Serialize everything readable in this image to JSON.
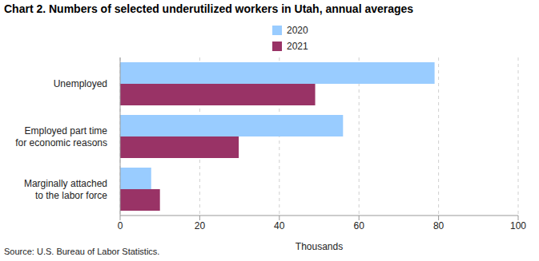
{
  "chart_data": {
    "type": "bar",
    "title": "Chart 2. Numbers of selected underutilized workers in Utah, annual averages",
    "orientation": "horizontal",
    "categories": [
      "Unemployed",
      "Employed part time\nfor economic reasons",
      "Marginally attached\nto the labor force"
    ],
    "series": [
      {
        "name": "2020",
        "color": "#99ccff",
        "values": [
          79,
          56,
          7.8
        ]
      },
      {
        "name": "2021",
        "color": "#993366",
        "values": [
          49,
          29.8,
          10
        ]
      }
    ],
    "x_label": "Thousands",
    "xlim": [
      0,
      100
    ],
    "xticks": [
      0,
      20,
      40,
      60,
      80,
      100
    ],
    "grid": true,
    "legend": "top",
    "source": "Source: U.S. Bureau of Labor Statistics."
  }
}
